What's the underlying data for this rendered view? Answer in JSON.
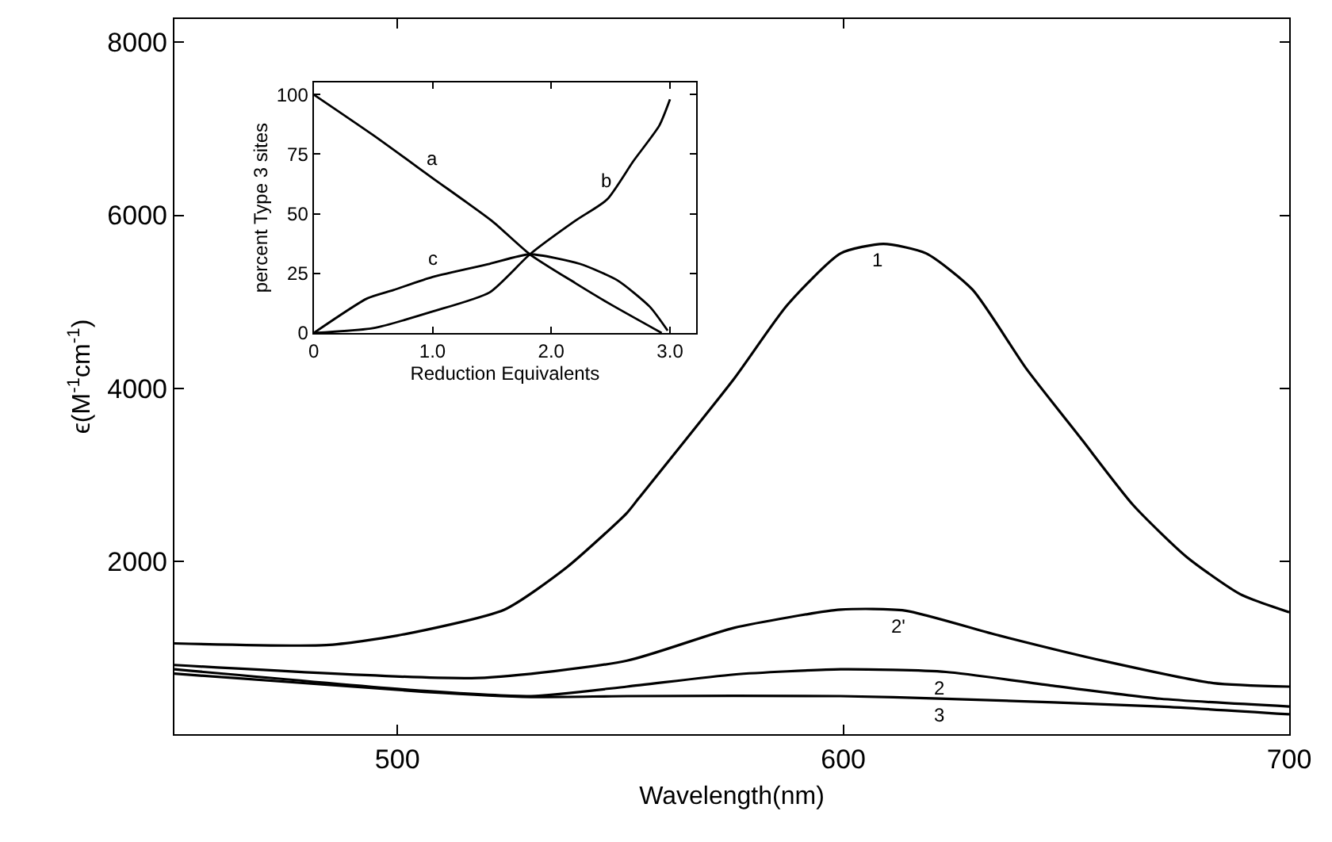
{
  "chart_data": [
    {
      "type": "line",
      "xlabel": "Wavelength(nm)",
      "ylabel": "ϵ(M$^{-1}$cm$^{-1}$)",
      "xlim": [
        450,
        700
      ],
      "xticks": [
        500,
        600,
        700
      ],
      "ylim": [
        0,
        8270
      ],
      "yticks": [
        2000,
        4000,
        6000,
        8000
      ],
      "marker": "none",
      "line_style": "solid",
      "series": [
        {
          "color": "#000000",
          "x": [
            450,
            484,
            500,
            524,
            538,
            551.5,
            554,
            575.5,
            587.4,
            599.4,
            609,
            618.6,
            629,
            641,
            653,
            665,
            677,
            689,
            700
          ],
          "values": [
            1050,
            1030,
            1140,
            1440,
            1930,
            2560,
            2720,
            4110,
            4960,
            5560,
            5670,
            5560,
            5140,
            4230,
            3440,
            2650,
            2050,
            1620,
            1410
          ]
        },
        {
          "color": "#000000",
          "x": [
            450,
            518,
            551.5,
            575.5,
            599.4,
            613.8,
            635,
            659,
            683,
            700
          ],
          "values": [
            800,
            650,
            850,
            1230,
            1440,
            1430,
            1140,
            840,
            590,
            550
          ]
        },
        {
          "color": "#000000",
          "x": [
            450,
            506,
            530,
            551.5,
            575.5,
            599.4,
            623,
            647,
            671,
            700
          ],
          "values": [
            750,
            500,
            440,
            550,
            690,
            750,
            720,
            560,
            410,
            320
          ]
        },
        {
          "color": "#000000",
          "x": [
            450,
            506,
            530,
            551.5,
            599.4,
            623,
            671,
            700
          ],
          "values": [
            700,
            490,
            430,
            440,
            440,
            410,
            320,
            230
          ]
        }
      ],
      "annotations": [
        {
          "text": "1",
          "x": 609,
          "y": 5670
        },
        {
          "text": "2'",
          "x": 613.8,
          "y": 1430
        },
        {
          "text": "2",
          "x": 623,
          "y": 720
        },
        {
          "text": "3",
          "x": 623,
          "y": 410
        }
      ]
    },
    {
      "type": "line",
      "xlabel": "Reduction Equivalents",
      "ylabel": "percent Type 3 sites",
      "xlim": [
        0,
        3.22
      ],
      "xticks": [
        0,
        {
          "value": 1,
          "label": "1.0"
        },
        {
          "value": 2,
          "label": "2.0"
        },
        {
          "value": 3,
          "label": "3.0"
        }
      ],
      "ylim": [
        0,
        105
      ],
      "yticks": [
        0,
        25,
        50,
        75,
        100
      ],
      "marker": "none",
      "line_style": "solid",
      "series": [
        {
          "color": "#000000",
          "x": [
            0,
            0.5,
            1.0,
            1.5,
            1.82,
            2.2,
            2.5,
            2.93
          ],
          "values": [
            100,
            83,
            65,
            47,
            33,
            21,
            12,
            0
          ]
        },
        {
          "color": "#000000",
          "x": [
            0,
            0.5,
            1.0,
            1.48,
            1.82,
            2.2,
            2.47,
            2.69,
            2.91,
            3.0
          ],
          "values": [
            0,
            2,
            9,
            17,
            33,
            47,
            56,
            72,
            87,
            98
          ]
        },
        {
          "color": "#000000",
          "x": [
            0,
            0.45,
            0.67,
            1.0,
            1.48,
            1.82,
            2.24,
            2.56,
            2.83,
            2.98
          ],
          "values": [
            0,
            14.5,
            18,
            23.5,
            29,
            33,
            29,
            22,
            11,
            1
          ]
        }
      ],
      "annotations": [
        {
          "text": "a",
          "x": 1.0,
          "y": 65
        },
        {
          "text": "b",
          "x": 2.47,
          "y": 56
        },
        {
          "text": "c",
          "x": 1.0,
          "y": 23.5
        }
      ]
    }
  ]
}
